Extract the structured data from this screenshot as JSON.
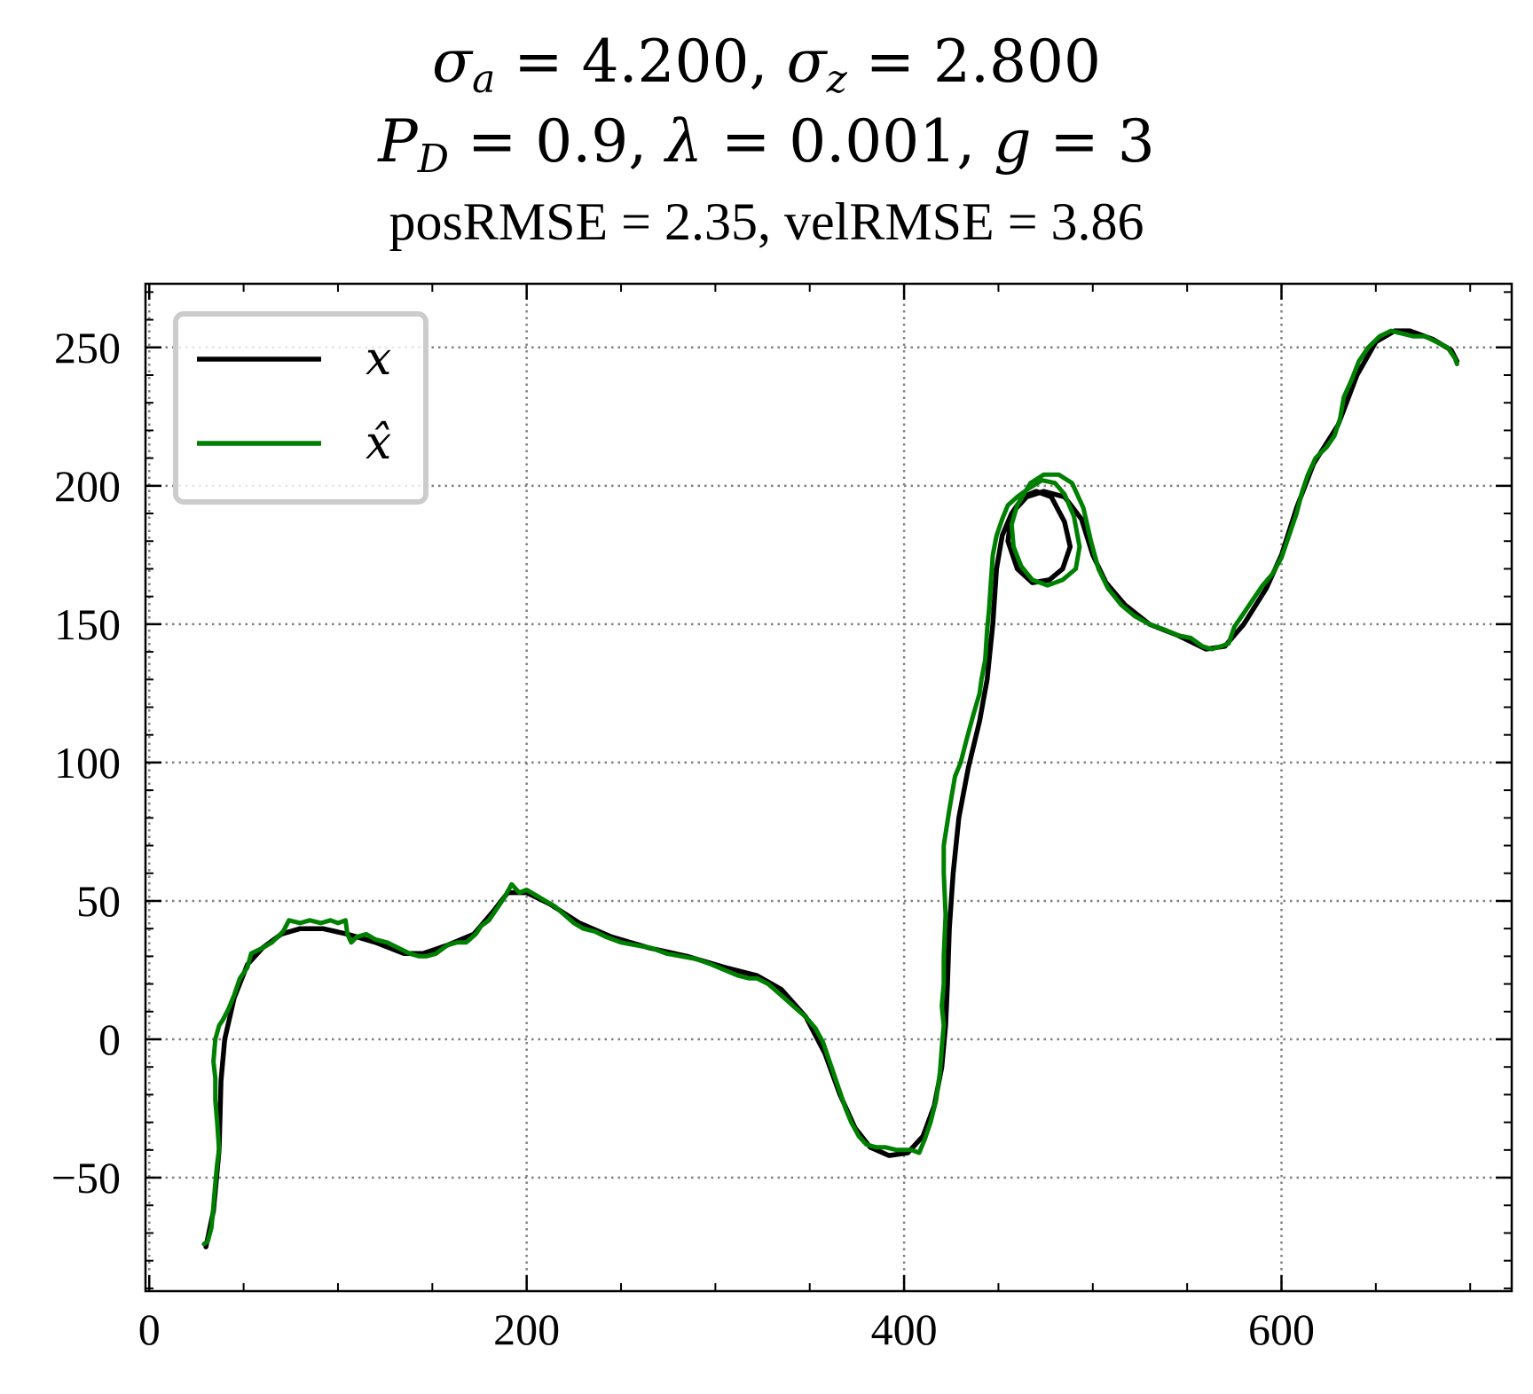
{
  "chart_data": {
    "type": "line",
    "title_line1": "σa = 4.200, σz = 2.800",
    "title_line2": "PD = 0.9, λ = 0.001, g = 3",
    "subtitle": "posRMSE = 2.35, velRMSE = 3.86",
    "xlim": [
      -2,
      722
    ],
    "ylim": [
      -91,
      273
    ],
    "x_ticks": [
      0,
      200,
      400,
      600
    ],
    "x_tick_labels": [
      "0",
      "200",
      "400",
      "600"
    ],
    "y_ticks": [
      -50,
      0,
      50,
      100,
      150,
      200,
      250
    ],
    "y_tick_labels": [
      "−50",
      "0",
      "50",
      "100",
      "150",
      "200",
      "250"
    ],
    "grid": true,
    "legend_position": "top-left",
    "series": [
      {
        "name": "x",
        "color": "#000000",
        "points": [
          [
            30,
            -75
          ],
          [
            34,
            -62
          ],
          [
            37,
            -40
          ],
          [
            38,
            -15
          ],
          [
            40,
            0
          ],
          [
            45,
            15
          ],
          [
            52,
            27
          ],
          [
            60,
            33
          ],
          [
            70,
            38
          ],
          [
            80,
            40
          ],
          [
            92,
            40
          ],
          [
            105,
            38
          ],
          [
            120,
            35
          ],
          [
            135,
            31
          ],
          [
            145,
            31
          ],
          [
            158,
            34
          ],
          [
            172,
            38
          ],
          [
            182,
            46
          ],
          [
            190,
            53
          ],
          [
            200,
            53
          ],
          [
            212,
            49
          ],
          [
            228,
            42
          ],
          [
            245,
            37
          ],
          [
            265,
            33
          ],
          [
            285,
            30
          ],
          [
            305,
            26
          ],
          [
            322,
            23
          ],
          [
            335,
            18
          ],
          [
            348,
            8
          ],
          [
            358,
            -5
          ],
          [
            366,
            -20
          ],
          [
            374,
            -32
          ],
          [
            382,
            -39
          ],
          [
            392,
            -42
          ],
          [
            402,
            -41
          ],
          [
            410,
            -35
          ],
          [
            416,
            -24
          ],
          [
            420,
            -10
          ],
          [
            422,
            5
          ],
          [
            423,
            20
          ],
          [
            424,
            40
          ],
          [
            426,
            60
          ],
          [
            429,
            80
          ],
          [
            434,
            98
          ],
          [
            440,
            115
          ],
          [
            444,
            130
          ],
          [
            447,
            150
          ],
          [
            449,
            170
          ],
          [
            452,
            182
          ],
          [
            457,
            190
          ],
          [
            463,
            196
          ],
          [
            470,
            198
          ],
          [
            478,
            196
          ],
          [
            485,
            187
          ],
          [
            488,
            178
          ],
          [
            484,
            170
          ],
          [
            477,
            166
          ],
          [
            468,
            165
          ],
          [
            460,
            170
          ],
          [
            455,
            180
          ],
          [
            457,
            190
          ],
          [
            465,
            196
          ],
          [
            474,
            198
          ],
          [
            485,
            196
          ],
          [
            494,
            188
          ],
          [
            500,
            175
          ],
          [
            507,
            165
          ],
          [
            517,
            157
          ],
          [
            530,
            150
          ],
          [
            545,
            146
          ],
          [
            560,
            141
          ],
          [
            570,
            142
          ],
          [
            580,
            150
          ],
          [
            592,
            163
          ],
          [
            600,
            175
          ],
          [
            608,
            192
          ],
          [
            617,
            208
          ],
          [
            630,
            222
          ],
          [
            640,
            240
          ],
          [
            650,
            252
          ],
          [
            660,
            256
          ],
          [
            668,
            256
          ],
          [
            680,
            253
          ],
          [
            690,
            249
          ],
          [
            693,
            245
          ]
        ]
      },
      {
        "name": "x̂",
        "color": "#008000",
        "points": [
          [
            29,
            -74
          ],
          [
            31,
            -73
          ],
          [
            33,
            -68
          ],
          [
            34,
            -60
          ],
          [
            35,
            -52
          ],
          [
            36,
            -45
          ],
          [
            37,
            -40
          ],
          [
            36,
            -30
          ],
          [
            35,
            -22
          ],
          [
            35,
            -14
          ],
          [
            34,
            -8
          ],
          [
            35,
            0
          ],
          [
            37,
            5
          ],
          [
            39,
            7
          ],
          [
            42,
            11
          ],
          [
            45,
            16
          ],
          [
            48,
            22
          ],
          [
            52,
            26
          ],
          [
            54,
            31
          ],
          [
            60,
            33
          ],
          [
            65,
            35
          ],
          [
            71,
            39
          ],
          [
            74,
            43
          ],
          [
            80,
            42
          ],
          [
            85,
            43
          ],
          [
            91,
            42
          ],
          [
            96,
            43
          ],
          [
            100,
            42
          ],
          [
            104,
            43
          ],
          [
            105,
            38
          ],
          [
            107,
            35
          ],
          [
            110,
            37
          ],
          [
            115,
            38
          ],
          [
            120,
            36
          ],
          [
            126,
            35
          ],
          [
            132,
            33
          ],
          [
            138,
            31
          ],
          [
            143,
            30
          ],
          [
            147,
            30
          ],
          [
            152,
            31
          ],
          [
            158,
            34
          ],
          [
            163,
            35
          ],
          [
            168,
            35
          ],
          [
            173,
            38
          ],
          [
            176,
            41
          ],
          [
            180,
            43
          ],
          [
            184,
            47
          ],
          [
            188,
            51
          ],
          [
            192,
            56
          ],
          [
            196,
            53
          ],
          [
            200,
            54
          ],
          [
            205,
            52
          ],
          [
            210,
            50
          ],
          [
            215,
            48
          ],
          [
            220,
            45
          ],
          [
            225,
            42
          ],
          [
            230,
            40
          ],
          [
            236,
            39
          ],
          [
            242,
            37
          ],
          [
            250,
            35
          ],
          [
            258,
            34
          ],
          [
            266,
            33
          ],
          [
            274,
            31
          ],
          [
            282,
            30
          ],
          [
            290,
            29
          ],
          [
            298,
            27
          ],
          [
            305,
            25
          ],
          [
            312,
            23
          ],
          [
            318,
            22
          ],
          [
            322,
            22
          ],
          [
            328,
            20
          ],
          [
            333,
            17
          ],
          [
            338,
            14
          ],
          [
            343,
            11
          ],
          [
            348,
            8
          ],
          [
            353,
            4
          ],
          [
            357,
            -1
          ],
          [
            360,
            -7
          ],
          [
            363,
            -13
          ],
          [
            366,
            -19
          ],
          [
            369,
            -25
          ],
          [
            372,
            -30
          ],
          [
            376,
            -35
          ],
          [
            380,
            -38
          ],
          [
            385,
            -39
          ],
          [
            390,
            -39
          ],
          [
            396,
            -40
          ],
          [
            400,
            -40
          ],
          [
            404,
            -40
          ],
          [
            408,
            -41
          ],
          [
            411,
            -36
          ],
          [
            414,
            -30
          ],
          [
            417,
            -22
          ],
          [
            419,
            -12
          ],
          [
            420,
            -3
          ],
          [
            421,
            5
          ],
          [
            420,
            12
          ],
          [
            421,
            20
          ],
          [
            421,
            30
          ],
          [
            422,
            45
          ],
          [
            421,
            60
          ],
          [
            421,
            70
          ],
          [
            424,
            83
          ],
          [
            427,
            95
          ],
          [
            430,
            100
          ],
          [
            433,
            108
          ],
          [
            437,
            118
          ],
          [
            440,
            125
          ],
          [
            441,
            130
          ],
          [
            443,
            137
          ],
          [
            444,
            148
          ],
          [
            445,
            155
          ],
          [
            446,
            165
          ],
          [
            447,
            175
          ],
          [
            449,
            182
          ],
          [
            452,
            188
          ],
          [
            455,
            193
          ],
          [
            460,
            196
          ],
          [
            466,
            199
          ],
          [
            473,
            202
          ],
          [
            480,
            201
          ],
          [
            485,
            197
          ],
          [
            490,
            189
          ],
          [
            493,
            178
          ],
          [
            491,
            170
          ],
          [
            484,
            166
          ],
          [
            476,
            164
          ],
          [
            468,
            166
          ],
          [
            462,
            171
          ],
          [
            458,
            178
          ],
          [
            457,
            186
          ],
          [
            460,
            193
          ],
          [
            467,
            201
          ],
          [
            474,
            204
          ],
          [
            482,
            204
          ],
          [
            489,
            201
          ],
          [
            495,
            192
          ],
          [
            499,
            180
          ],
          [
            503,
            170
          ],
          [
            508,
            163
          ],
          [
            515,
            157
          ],
          [
            522,
            153
          ],
          [
            530,
            150
          ],
          [
            538,
            148
          ],
          [
            545,
            146
          ],
          [
            552,
            145
          ],
          [
            558,
            142
          ],
          [
            563,
            141
          ],
          [
            568,
            142
          ],
          [
            572,
            143
          ],
          [
            575,
            149
          ],
          [
            580,
            154
          ],
          [
            586,
            160
          ],
          [
            590,
            164
          ],
          [
            595,
            168
          ],
          [
            600,
            174
          ],
          [
            604,
            182
          ],
          [
            608,
            190
          ],
          [
            611,
            198
          ],
          [
            614,
            204
          ],
          [
            618,
            210
          ],
          [
            624,
            214
          ],
          [
            628,
            218
          ],
          [
            631,
            224
          ],
          [
            633,
            232
          ],
          [
            637,
            238
          ],
          [
            641,
            245
          ],
          [
            646,
            250
          ],
          [
            652,
            254
          ],
          [
            658,
            256
          ],
          [
            664,
            255
          ],
          [
            670,
            254
          ],
          [
            676,
            254
          ],
          [
            682,
            252
          ],
          [
            688,
            250
          ],
          [
            692,
            246
          ],
          [
            693,
            244
          ]
        ]
      }
    ]
  }
}
